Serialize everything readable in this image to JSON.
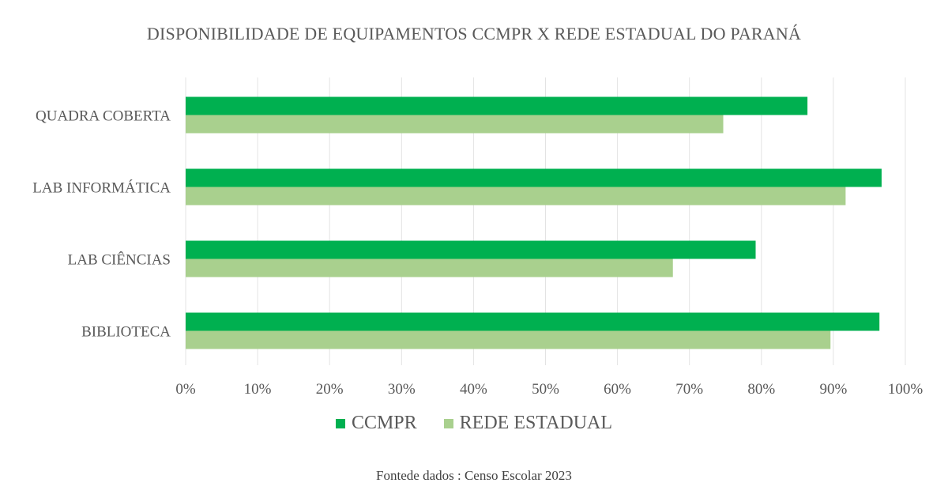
{
  "chart_data": {
    "type": "bar",
    "orientation": "horizontal",
    "title": "DISPONIBILIDADE DE EQUIPAMENTOS CCMPR X REDE ESTADUAL DO PARANÁ",
    "categories": [
      "QUADRA COBERTA",
      "LAB INFORMÁTICA",
      "LAB CIÊNCIAS",
      "BIBLIOTECA"
    ],
    "series": [
      {
        "name": "CCMPR",
        "color": "#00B050",
        "values": [
          86.4,
          96.7,
          79.2,
          96.4
        ]
      },
      {
        "name": "REDE ESTADUAL",
        "color": "#A9D08E",
        "values": [
          74.7,
          91.7,
          67.7,
          89.6
        ]
      }
    ],
    "xlim": [
      0,
      100
    ],
    "xticks": [
      "0%",
      "10%",
      "20%",
      "30%",
      "40%",
      "50%",
      "60%",
      "70%",
      "80%",
      "90%",
      "100%"
    ],
    "xlabel": "",
    "ylabel": "",
    "grid": true,
    "legend_position": "bottom",
    "source": "Fontede dados : Censo Escolar 2023"
  }
}
